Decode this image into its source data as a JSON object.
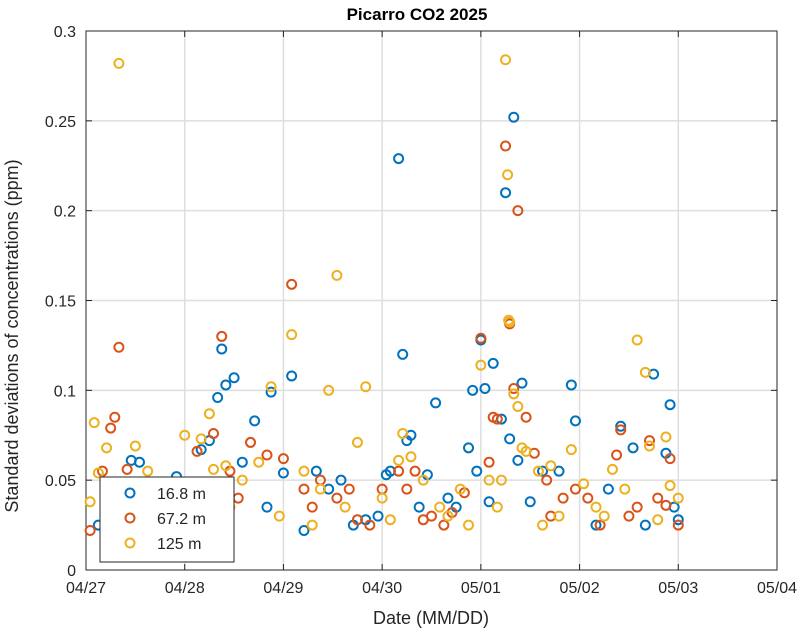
{
  "chart_data": {
    "type": "scatter",
    "title": "Picarro CO2 2025",
    "xlabel": "Date (MM/DD)",
    "ylabel": "Standard deviations of concentrations (ppm)",
    "x_ticks": [
      "04/27",
      "04/28",
      "04/29",
      "04/30",
      "05/01",
      "05/02",
      "05/03",
      "05/04"
    ],
    "y_ticks": [
      "0",
      "0.05",
      "0.1",
      "0.15",
      "0.2",
      "0.25",
      "0.3"
    ],
    "xlim": [
      "04/27 00:00",
      "05/04 00:00"
    ],
    "ylim": [
      0,
      0.3
    ],
    "grid": true,
    "legend_position": "bottom-left",
    "series": [
      {
        "name": "16.8 m",
        "color": "#0072BD",
        "points": [
          [
            "04/27 03:00",
            0.025
          ],
          [
            "04/27 06:00",
            0.028
          ],
          [
            "04/27 08:00",
            0.036
          ],
          [
            "04/27 11:00",
            0.061
          ],
          [
            "04/27 13:00",
            0.06
          ],
          [
            "04/27 16:00",
            0.03
          ],
          [
            "04/27 19:00",
            0.025
          ],
          [
            "04/27 22:00",
            0.052
          ],
          [
            "04/28 04:00",
            0.067
          ],
          [
            "04/28 06:00",
            0.072
          ],
          [
            "04/28 08:00",
            0.096
          ],
          [
            "04/28 09:00",
            0.123
          ],
          [
            "04/28 10:00",
            0.103
          ],
          [
            "04/28 12:00",
            0.107
          ],
          [
            "04/28 14:00",
            0.06
          ],
          [
            "04/28 17:00",
            0.083
          ],
          [
            "04/28 21:00",
            0.099
          ],
          [
            "04/29 00:00",
            0.054
          ],
          [
            "04/29 02:00",
            0.108
          ],
          [
            "04/29 05:00",
            0.022
          ],
          [
            "04/29 08:00",
            0.055
          ],
          [
            "04/29 14:00",
            0.05
          ],
          [
            "04/29 17:00",
            0.025
          ],
          [
            "04/29 20:00",
            0.028
          ],
          [
            "04/30 01:00",
            0.053
          ],
          [
            "04/30 02:00",
            0.055
          ],
          [
            "04/30 04:00",
            0.229
          ],
          [
            "04/30 05:00",
            0.12
          ],
          [
            "04/30 06:00",
            0.072
          ],
          [
            "04/30 07:00",
            0.075
          ],
          [
            "04/30 11:00",
            0.053
          ],
          [
            "04/30 13:00",
            0.093
          ],
          [
            "04/30 16:00",
            0.04
          ],
          [
            "04/30 21:00",
            0.068
          ],
          [
            "04/30 22:00",
            0.1
          ],
          [
            "04/30 23:00",
            0.055
          ],
          [
            "05/01 00:00",
            0.128
          ],
          [
            "05/01 01:00",
            0.101
          ],
          [
            "05/01 02:00",
            0.038
          ],
          [
            "05/01 03:00",
            0.115
          ],
          [
            "05/01 05:00",
            0.084
          ],
          [
            "05/01 06:00",
            0.21
          ],
          [
            "05/01 07:00",
            0.073
          ],
          [
            "05/01 08:00",
            0.252
          ],
          [
            "05/01 09:00",
            0.061
          ],
          [
            "05/01 10:00",
            0.104
          ],
          [
            "05/01 15:00",
            0.055
          ],
          [
            "05/01 19:00",
            0.055
          ],
          [
            "05/01 22:00",
            0.103
          ],
          [
            "05/01 23:00",
            0.083
          ],
          [
            "05/02 04:00",
            0.025
          ],
          [
            "05/02 10:00",
            0.08
          ],
          [
            "05/02 13:00",
            0.068
          ],
          [
            "05/02 16:00",
            0.025
          ],
          [
            "05/02 18:00",
            0.109
          ],
          [
            "05/02 21:00",
            0.065
          ],
          [
            "05/02 22:00",
            0.092
          ],
          [
            "05/02 23:00",
            0.035
          ],
          [
            "05/03 00:00",
            0.028
          ],
          [
            "04/27 09:00",
            0.045
          ],
          [
            "04/28 01:00",
            0.043
          ],
          [
            "04/28 20:00",
            0.035
          ],
          [
            "04/29 11:00",
            0.045
          ],
          [
            "04/30 09:00",
            0.035
          ],
          [
            "05/01 12:00",
            0.038
          ],
          [
            "05/02 07:00",
            0.045
          ],
          [
            "04/29 23:00",
            0.03
          ],
          [
            "04/30 18:00",
            0.035
          ]
        ]
      },
      {
        "name": "67.2 m",
        "color": "#D95319",
        "points": [
          [
            "04/27 01:00",
            0.022
          ],
          [
            "04/27 04:00",
            0.055
          ],
          [
            "04/27 06:00",
            0.079
          ],
          [
            "04/27 07:00",
            0.085
          ],
          [
            "04/27 08:00",
            0.124
          ],
          [
            "04/27 10:00",
            0.056
          ],
          [
            "04/27 14:00",
            0.04
          ],
          [
            "04/27 18:00",
            0.035
          ],
          [
            "04/28 03:00",
            0.066
          ],
          [
            "04/28 07:00",
            0.076
          ],
          [
            "04/28 09:00",
            0.13
          ],
          [
            "04/28 11:00",
            0.055
          ],
          [
            "04/28 16:00",
            0.071
          ],
          [
            "04/28 20:00",
            0.064
          ],
          [
            "04/29 00:00",
            0.062
          ],
          [
            "04/29 02:00",
            0.159
          ],
          [
            "04/29 05:00",
            0.045
          ],
          [
            "04/29 09:00",
            0.05
          ],
          [
            "04/29 13:00",
            0.04
          ],
          [
            "04/29 18:00",
            0.028
          ],
          [
            "04/30 00:00",
            0.045
          ],
          [
            "04/30 04:00",
            0.055
          ],
          [
            "04/30 06:00",
            0.045
          ],
          [
            "04/30 08:00",
            0.055
          ],
          [
            "04/30 12:00",
            0.03
          ],
          [
            "04/30 17:00",
            0.032
          ],
          [
            "04/30 20:00",
            0.043
          ],
          [
            "05/01 00:00",
            0.129
          ],
          [
            "05/01 02:00",
            0.06
          ],
          [
            "05/01 03:00",
            0.085
          ],
          [
            "05/01 04:00",
            0.084
          ],
          [
            "05/01 06:00",
            0.236
          ],
          [
            "05/01 07:00",
            0.137
          ],
          [
            "05/01 08:00",
            0.101
          ],
          [
            "05/01 09:00",
            0.2
          ],
          [
            "05/01 11:00",
            0.085
          ],
          [
            "05/01 13:00",
            0.065
          ],
          [
            "05/01 16:00",
            0.05
          ],
          [
            "05/01 20:00",
            0.04
          ],
          [
            "05/01 23:00",
            0.045
          ],
          [
            "05/02 02:00",
            0.04
          ],
          [
            "05/02 05:00",
            0.025
          ],
          [
            "05/02 09:00",
            0.064
          ],
          [
            "05/02 10:00",
            0.078
          ],
          [
            "05/02 14:00",
            0.035
          ],
          [
            "05/02 17:00",
            0.072
          ],
          [
            "05/02 19:00",
            0.04
          ],
          [
            "05/02 21:00",
            0.036
          ],
          [
            "05/02 22:00",
            0.062
          ],
          [
            "05/03 00:00",
            0.025
          ],
          [
            "04/27 12:00",
            0.045
          ],
          [
            "04/28 00:00",
            0.03
          ],
          [
            "04/28 13:00",
            0.04
          ],
          [
            "04/29 07:00",
            0.035
          ],
          [
            "04/29 21:00",
            0.025
          ],
          [
            "04/30 15:00",
            0.025
          ],
          [
            "05/01 17:00",
            0.03
          ],
          [
            "05/02 12:00",
            0.03
          ],
          [
            "04/29 16:00",
            0.045
          ],
          [
            "04/30 10:00",
            0.028
          ]
        ]
      },
      {
        "name": "125 m",
        "color": "#EDB120",
        "points": [
          [
            "04/27 01:00",
            0.038
          ],
          [
            "04/27 02:00",
            0.082
          ],
          [
            "04/27 03:00",
            0.054
          ],
          [
            "04/27 05:00",
            0.068
          ],
          [
            "04/27 08:00",
            0.282
          ],
          [
            "04/27 12:00",
            0.069
          ],
          [
            "04/27 15:00",
            0.055
          ],
          [
            "04/27 19:00",
            0.045
          ],
          [
            "04/28 00:00",
            0.075
          ],
          [
            "04/28 04:00",
            0.073
          ],
          [
            "04/28 06:00",
            0.087
          ],
          [
            "04/28 07:00",
            0.056
          ],
          [
            "04/28 10:00",
            0.058
          ],
          [
            "04/28 14:00",
            0.05
          ],
          [
            "04/28 18:00",
            0.06
          ],
          [
            "04/28 21:00",
            0.102
          ],
          [
            "04/29 02:00",
            0.131
          ],
          [
            "04/29 05:00",
            0.055
          ],
          [
            "04/29 09:00",
            0.045
          ],
          [
            "04/29 11:00",
            0.1
          ],
          [
            "04/29 13:00",
            0.164
          ],
          [
            "04/29 18:00",
            0.071
          ],
          [
            "04/29 20:00",
            0.102
          ],
          [
            "04/30 00:00",
            0.04
          ],
          [
            "04/30 04:00",
            0.061
          ],
          [
            "04/30 05:00",
            0.076
          ],
          [
            "04/30 07:00",
            0.063
          ],
          [
            "04/30 10:00",
            0.05
          ],
          [
            "04/30 14:00",
            0.035
          ],
          [
            "04/30 19:00",
            0.045
          ],
          [
            "05/01 00:00",
            0.114
          ],
          [
            "05/01 02:00",
            0.05
          ],
          [
            "05/01 05:00",
            0.05
          ],
          [
            "05/01 06:00",
            0.284
          ],
          [
            "05/01 06:30",
            0.22
          ],
          [
            "05/01 06:45",
            0.139
          ],
          [
            "05/01 07:00",
            0.138
          ],
          [
            "05/01 08:00",
            0.098
          ],
          [
            "05/01 09:00",
            0.091
          ],
          [
            "05/01 10:00",
            0.068
          ],
          [
            "05/01 11:00",
            0.066
          ],
          [
            "05/01 14:00",
            0.055
          ],
          [
            "05/01 17:00",
            0.058
          ],
          [
            "05/01 22:00",
            0.067
          ],
          [
            "05/02 01:00",
            0.048
          ],
          [
            "05/02 04:00",
            0.035
          ],
          [
            "05/02 08:00",
            0.056
          ],
          [
            "05/02 11:00",
            0.045
          ],
          [
            "05/02 14:00",
            0.128
          ],
          [
            "05/02 16:00",
            0.11
          ],
          [
            "05/02 17:00",
            0.069
          ],
          [
            "05/02 21:00",
            0.074
          ],
          [
            "05/02 22:00",
            0.047
          ],
          [
            "05/03 00:00",
            0.04
          ],
          [
            "04/27 10:00",
            0.035
          ],
          [
            "04/27 22:00",
            0.03
          ],
          [
            "04/28 11:00",
            0.035
          ],
          [
            "04/28 23:00",
            0.03
          ],
          [
            "04/29 15:00",
            0.035
          ],
          [
            "04/30 02:00",
            0.028
          ],
          [
            "04/30 16:00",
            0.03
          ],
          [
            "05/01 04:00",
            0.035
          ],
          [
            "05/01 19:00",
            0.03
          ],
          [
            "05/02 06:00",
            0.03
          ],
          [
            "05/02 19:00",
            0.028
          ],
          [
            "04/29 07:00",
            0.025
          ],
          [
            "04/30 21:00",
            0.025
          ],
          [
            "05/01 15:00",
            0.025
          ]
        ]
      }
    ]
  }
}
